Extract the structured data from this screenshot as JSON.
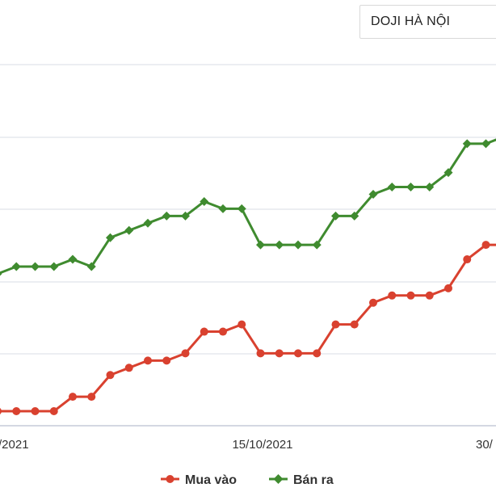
{
  "selector": {
    "selected": "DOJI HÀ NỘI"
  },
  "chart_data": {
    "type": "line",
    "x_tick_labels": [
      "/2021",
      "15/10/2021",
      "30/"
    ],
    "grid": true,
    "legend_placement": "bottom-center",
    "colors": {
      "mua_vao": "#d9412f",
      "ban_ra": "#3f8b2f"
    },
    "series": [
      {
        "name": "Mua vào",
        "marker": "circle",
        "values": [
          0,
          0,
          0,
          0,
          2,
          2,
          5,
          6,
          7,
          7,
          8,
          11,
          11,
          12,
          8,
          8,
          8,
          8,
          12,
          12,
          15,
          16,
          16,
          16,
          17,
          21,
          23,
          23
        ]
      },
      {
        "name": "Bán ra",
        "marker": "diamond",
        "values": [
          19,
          20,
          20,
          20,
          21,
          20,
          24,
          25,
          26,
          27,
          27,
          29,
          28,
          28,
          23,
          23,
          23,
          23,
          27,
          27,
          30,
          31,
          31,
          31,
          33,
          37,
          37,
          38
        ]
      }
    ]
  }
}
